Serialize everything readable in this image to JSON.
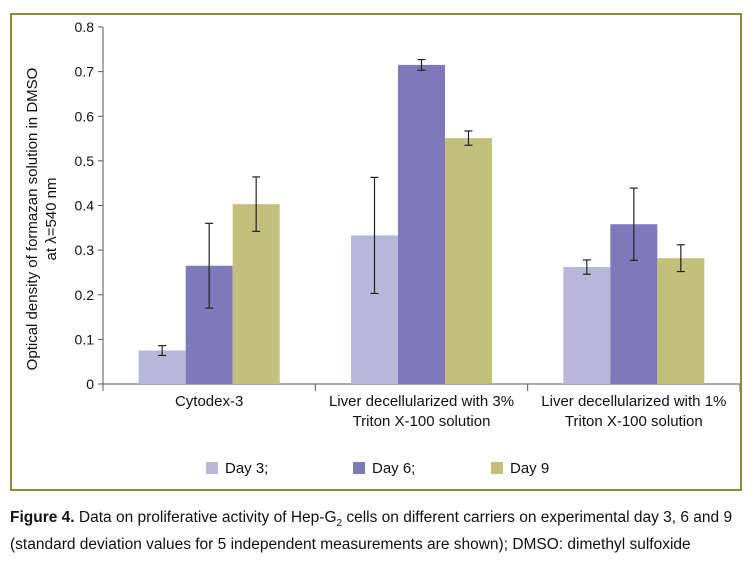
{
  "chart_data": {
    "type": "bar",
    "ylabel_line1": "Optical density of formazan solution in DMSO",
    "ylabel_line2": "at λ=540 nm",
    "ylim": [
      0,
      0.8
    ],
    "yticks": [
      "0",
      "0.1",
      "0.2",
      "0.3",
      "0.4",
      "0.5",
      "0.6",
      "0.7",
      "0.8"
    ],
    "categories": [
      [
        "Cytodex-3"
      ],
      [
        "Liver decellularized with 3%",
        "Triton X-100 solution"
      ],
      [
        "Liver decellularized with 1%",
        "Triton X-100 solution"
      ]
    ],
    "series": [
      {
        "name": "Day 3;",
        "color": "#b8b6d9",
        "values": [
          0.075,
          0.333,
          0.262
        ],
        "errors": [
          0.011,
          0.13,
          0.016
        ]
      },
      {
        "name": "Day 6;",
        "color": "#7f78bb",
        "values": [
          0.265,
          0.715,
          0.358
        ],
        "errors": [
          0.095,
          0.012,
          0.081
        ]
      },
      {
        "name": "Day 9",
        "color": "#c3c07c",
        "values": [
          0.403,
          0.551,
          0.282
        ],
        "errors": [
          0.061,
          0.016,
          0.03
        ]
      }
    ],
    "grid": false,
    "legend_position": "bottom"
  },
  "caption": {
    "figure_label": "Figure 4.",
    "text_before_sub": " Data on proliferative activity of Hep-G",
    "subscript": "2",
    "text_after_sub": " cells on different carriers on experimental day 3, 6 and 9 (standard deviation values for 5 independent measurements are shown); DMSO: dimethyl sulfoxide"
  }
}
